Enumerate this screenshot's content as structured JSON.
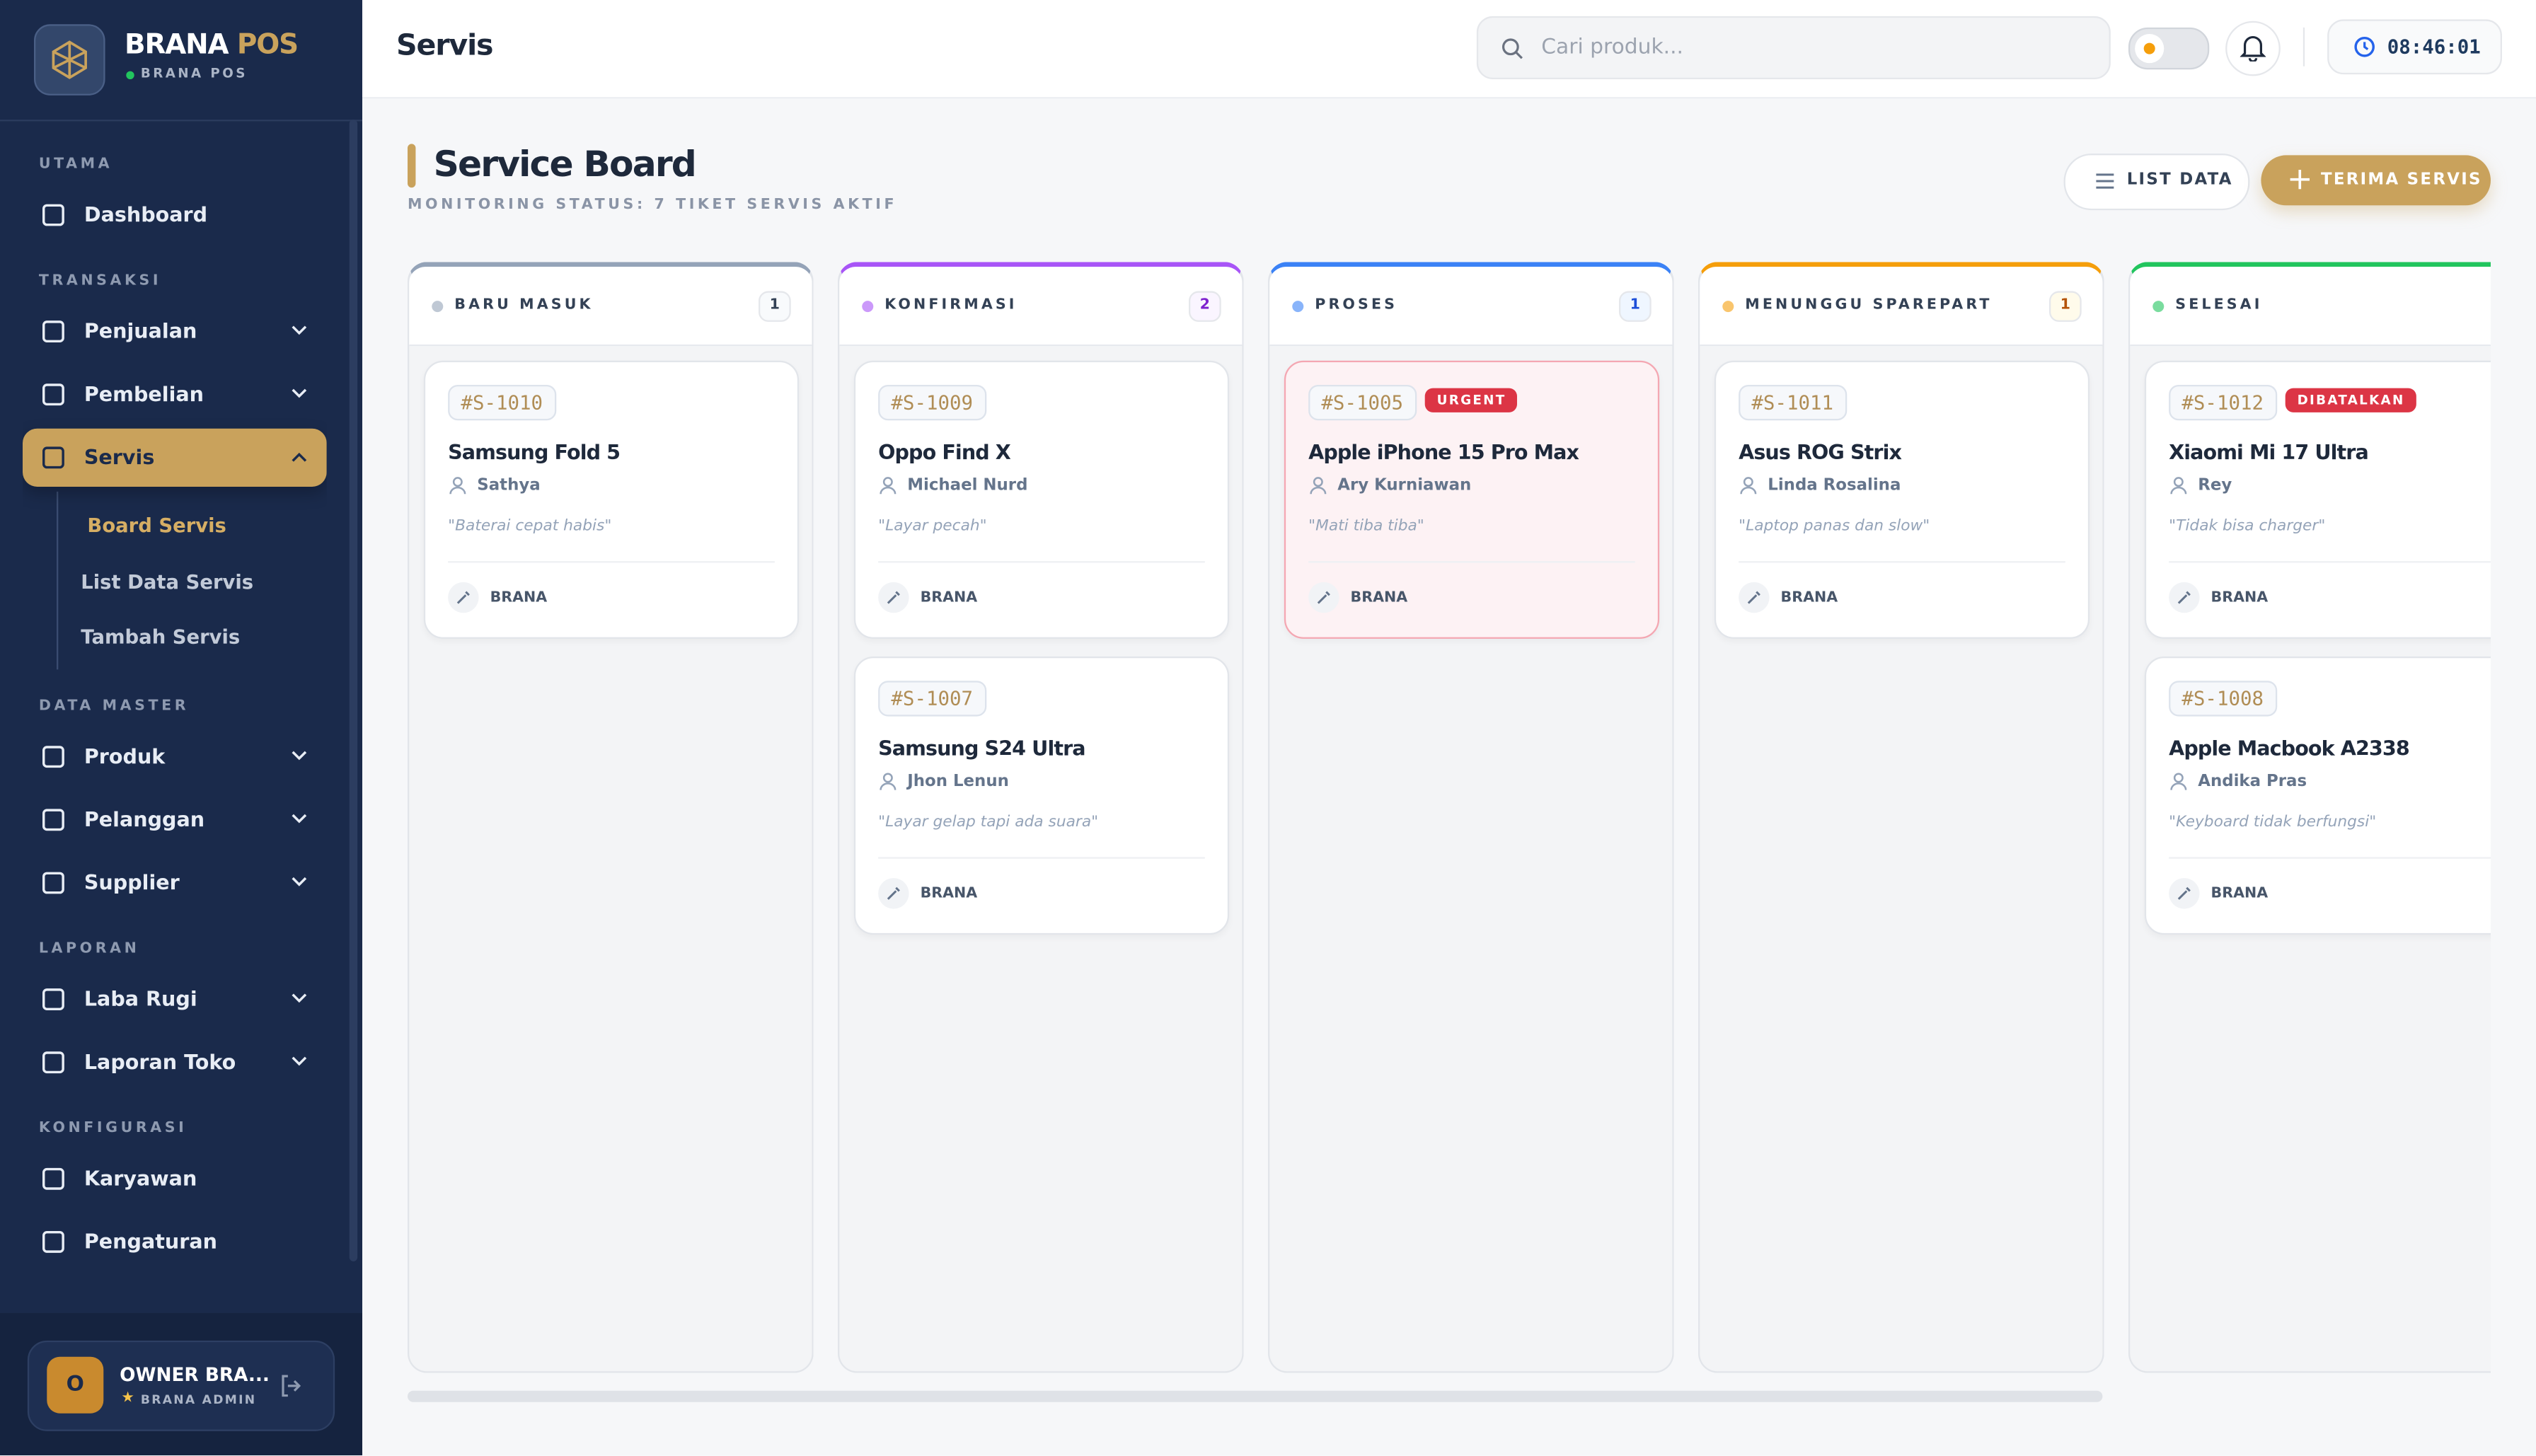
{
  "sidebar": {
    "brand": "BRANA",
    "brand_accent": "POS",
    "store": "BRANA POS",
    "sections": [
      {
        "title": "UTAMA",
        "items": [
          {
            "label": "Dashboard"
          }
        ]
      },
      {
        "title": "TRANSAKSI",
        "items": [
          {
            "label": "Penjualan"
          },
          {
            "label": "Pembelian"
          },
          {
            "label": "Servis",
            "children": [
              "Board Servis",
              "List Data Servis",
              "Tambah Servis"
            ]
          }
        ]
      },
      {
        "title": "DATA MASTER",
        "items": [
          {
            "label": "Produk"
          },
          {
            "label": "Pelanggan"
          },
          {
            "label": "Supplier"
          }
        ]
      },
      {
        "title": "LAPORAN",
        "items": [
          {
            "label": "Laba Rugi"
          },
          {
            "label": "Laporan Toko"
          }
        ]
      },
      {
        "title": "KONFIGURASI",
        "items": [
          {
            "label": "Karyawan"
          },
          {
            "label": "Pengaturan"
          }
        ]
      }
    ],
    "user": {
      "initial": "O",
      "name": "OWNER BRA...",
      "role": "BRANA ADMIN"
    }
  },
  "header": {
    "title": "Servis",
    "search_placeholder": "Cari produk...",
    "clock": "08:46:01"
  },
  "board": {
    "title": "Service Board",
    "subtitle": "MONITORING STATUS: 7 TIKET SERVIS AKTIF",
    "list_button": "LIST DATA",
    "add_button": "TERIMA SERVIS",
    "columns": [
      {
        "name": "BARU MASUK",
        "count": "1",
        "cards": [
          {
            "id": "#S-1010",
            "device": "Samsung Fold 5",
            "customer": "Sathya",
            "note": "\"Baterai cepat habis\"",
            "tech": "BRANA"
          }
        ]
      },
      {
        "name": "KONFIRMASI",
        "count": "2",
        "cards": [
          {
            "id": "#S-1009",
            "device": "Oppo Find X",
            "customer": "Michael Nurd",
            "note": "\"Layar pecah\"",
            "tech": "BRANA"
          },
          {
            "id": "#S-1007",
            "device": "Samsung S24 Ultra",
            "customer": "Jhon Lenun",
            "note": "\"Layar gelap tapi ada suara\"",
            "tech": "BRANA"
          }
        ]
      },
      {
        "name": "PROSES",
        "count": "1",
        "cards": [
          {
            "id": "#S-1005",
            "badge": "URGENT",
            "device": "Apple iPhone 15 Pro Max",
            "customer": "Ary Kurniawan",
            "note": "\"Mati tiba tiba\"",
            "tech": "BRANA"
          }
        ]
      },
      {
        "name": "MENUNGGU SPAREPART",
        "count": "1",
        "cards": [
          {
            "id": "#S-1011",
            "device": "Asus ROG Strix",
            "customer": "Linda Rosalina",
            "note": "\"Laptop panas dan slow\"",
            "tech": "BRANA"
          }
        ]
      },
      {
        "name": "SELESAI",
        "cards": [
          {
            "id": "#S-1012",
            "badge": "DIBATALKAN",
            "device": "Xiaomi Mi 17 Ultra",
            "customer": "Rey",
            "note": "\"Tidak bisa charger\"",
            "tech": "BRANA"
          },
          {
            "id": "#S-1008",
            "device": "Apple Macbook A2338",
            "customer": "Andika Pras",
            "note": "\"Keyboard tidak berfungsi\"",
            "tech": "BRANA"
          }
        ]
      }
    ]
  }
}
